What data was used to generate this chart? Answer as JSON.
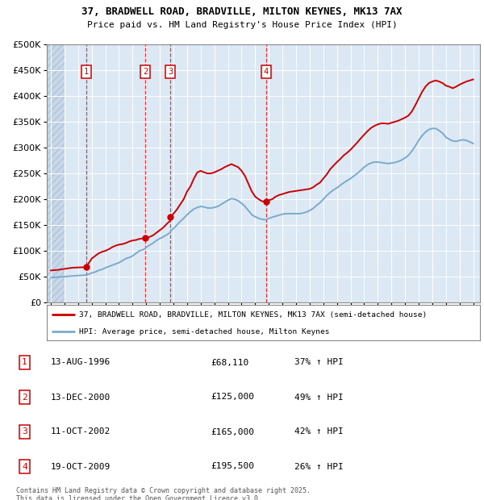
{
  "title_line1": "37, BRADWELL ROAD, BRADVILLE, MILTON KEYNES, MK13 7AX",
  "title_line2": "Price paid vs. HM Land Registry's House Price Index (HPI)",
  "background_color": "#ffffff",
  "plot_bg_color": "#dce9f5",
  "hatch_color": "#c8d8ea",
  "grid_color": "#ffffff",
  "sale_dates": [
    1996.617,
    2000.951,
    2002.784,
    2009.8
  ],
  "sale_prices": [
    68110,
    125000,
    165000,
    195500
  ],
  "sale_labels": [
    "1",
    "2",
    "3",
    "4"
  ],
  "sale_label_texts": [
    "13-AUG-1996",
    "13-DEC-2000",
    "11-OCT-2002",
    "19-OCT-2009"
  ],
  "sale_price_texts": [
    "£68,110",
    "£125,000",
    "£165,000",
    "£195,500"
  ],
  "sale_hpi_texts": [
    "37% ↑ HPI",
    "49% ↑ HPI",
    "42% ↑ HPI",
    "26% ↑ HPI"
  ],
  "red_line_color": "#cc0000",
  "blue_line_color": "#7aaacc",
  "dashed_line_color": "#ee3333",
  "marker_color": "#cc0000",
  "ylim_min": 0,
  "ylim_max": 500000,
  "xlim_min": 1993.7,
  "xlim_max": 2025.5,
  "legend_label_red": "37, BRADWELL ROAD, BRADVILLE, MILTON KEYNES, MK13 7AX (semi-detached house)",
  "legend_label_blue": "HPI: Average price, semi-detached house, Milton Keynes",
  "footer_line1": "Contains HM Land Registry data © Crown copyright and database right 2025.",
  "footer_line2": "This data is licensed under the Open Government Licence v3.0.",
  "red_x": [
    1994.0,
    1994.25,
    1994.5,
    1994.75,
    1995.0,
    1995.25,
    1995.5,
    1995.75,
    1996.0,
    1996.25,
    1996.617,
    1996.75,
    1997.0,
    1997.25,
    1997.5,
    1997.75,
    1998.0,
    1998.25,
    1998.5,
    1998.75,
    1999.0,
    1999.25,
    1999.5,
    1999.75,
    2000.0,
    2000.25,
    2000.5,
    2000.75,
    2000.951,
    2001.0,
    2001.25,
    2001.5,
    2001.75,
    2002.0,
    2002.25,
    2002.5,
    2002.75,
    2002.784,
    2003.0,
    2003.25,
    2003.5,
    2003.75,
    2004.0,
    2004.25,
    2004.5,
    2004.75,
    2005.0,
    2005.25,
    2005.5,
    2005.75,
    2006.0,
    2006.25,
    2006.5,
    2006.75,
    2007.0,
    2007.25,
    2007.5,
    2007.75,
    2008.0,
    2008.25,
    2008.5,
    2008.75,
    2009.0,
    2009.25,
    2009.5,
    2009.8,
    2009.9,
    2010.0,
    2010.25,
    2010.5,
    2010.75,
    2011.0,
    2011.25,
    2011.5,
    2011.75,
    2012.0,
    2012.25,
    2012.5,
    2012.75,
    2013.0,
    2013.25,
    2013.5,
    2013.75,
    2014.0,
    2014.25,
    2014.5,
    2014.75,
    2015.0,
    2015.25,
    2015.5,
    2015.75,
    2016.0,
    2016.25,
    2016.5,
    2016.75,
    2017.0,
    2017.25,
    2017.5,
    2017.75,
    2018.0,
    2018.25,
    2018.5,
    2018.75,
    2019.0,
    2019.25,
    2019.5,
    2019.75,
    2020.0,
    2020.25,
    2020.5,
    2020.75,
    2021.0,
    2021.25,
    2021.5,
    2021.75,
    2022.0,
    2022.25,
    2022.5,
    2022.75,
    2023.0,
    2023.25,
    2023.5,
    2023.75,
    2024.0,
    2024.25,
    2024.5,
    2024.75,
    2025.0
  ],
  "red_y": [
    62000,
    62500,
    63000,
    64000,
    65000,
    66000,
    67000,
    67500,
    67800,
    68000,
    68110,
    75000,
    85000,
    90000,
    95000,
    98000,
    100000,
    103000,
    107000,
    110000,
    112000,
    113000,
    115000,
    118000,
    120000,
    121000,
    123000,
    124000,
    125000,
    125500,
    127000,
    130000,
    135000,
    140000,
    145000,
    152000,
    158000,
    165000,
    172000,
    180000,
    190000,
    200000,
    215000,
    225000,
    240000,
    252000,
    255000,
    252000,
    250000,
    250000,
    252000,
    255000,
    258000,
    262000,
    265000,
    268000,
    265000,
    262000,
    255000,
    245000,
    230000,
    215000,
    205000,
    200000,
    196000,
    195500,
    196000,
    198000,
    200000,
    205000,
    208000,
    210000,
    212000,
    214000,
    215000,
    216000,
    217000,
    218000,
    219000,
    220000,
    223000,
    228000,
    232000,
    240000,
    248000,
    258000,
    265000,
    272000,
    278000,
    285000,
    290000,
    296000,
    303000,
    310000,
    318000,
    325000,
    332000,
    338000,
    342000,
    345000,
    347000,
    347000,
    346000,
    348000,
    350000,
    352000,
    355000,
    358000,
    362000,
    370000,
    382000,
    395000,
    408000,
    418000,
    425000,
    428000,
    430000,
    428000,
    425000,
    420000,
    418000,
    415000,
    418000,
    422000,
    425000,
    428000,
    430000,
    432000
  ],
  "blue_x": [
    1994.0,
    1994.25,
    1994.5,
    1994.75,
    1995.0,
    1995.25,
    1995.5,
    1995.75,
    1996.0,
    1996.25,
    1996.617,
    1996.75,
    1997.0,
    1997.25,
    1997.5,
    1997.75,
    1998.0,
    1998.25,
    1998.5,
    1998.75,
    1999.0,
    1999.25,
    1999.5,
    1999.75,
    2000.0,
    2000.25,
    2000.5,
    2000.75,
    2000.951,
    2001.0,
    2001.25,
    2001.5,
    2001.75,
    2002.0,
    2002.25,
    2002.5,
    2002.75,
    2002.784,
    2003.0,
    2003.25,
    2003.5,
    2003.75,
    2004.0,
    2004.25,
    2004.5,
    2004.75,
    2005.0,
    2005.25,
    2005.5,
    2005.75,
    2006.0,
    2006.25,
    2006.5,
    2006.75,
    2007.0,
    2007.25,
    2007.5,
    2007.75,
    2008.0,
    2008.25,
    2008.5,
    2008.75,
    2009.0,
    2009.25,
    2009.5,
    2009.8,
    2009.9,
    2010.0,
    2010.25,
    2010.5,
    2010.75,
    2011.0,
    2011.25,
    2011.5,
    2011.75,
    2012.0,
    2012.25,
    2012.5,
    2012.75,
    2013.0,
    2013.25,
    2013.5,
    2013.75,
    2014.0,
    2014.25,
    2014.5,
    2014.75,
    2015.0,
    2015.25,
    2015.5,
    2015.75,
    2016.0,
    2016.25,
    2016.5,
    2016.75,
    2017.0,
    2017.25,
    2017.5,
    2017.75,
    2018.0,
    2018.25,
    2018.5,
    2018.75,
    2019.0,
    2019.25,
    2019.5,
    2019.75,
    2020.0,
    2020.25,
    2020.5,
    2020.75,
    2021.0,
    2021.25,
    2021.5,
    2021.75,
    2022.0,
    2022.25,
    2022.5,
    2022.75,
    2023.0,
    2023.25,
    2023.5,
    2023.75,
    2024.0,
    2024.25,
    2024.5,
    2024.75,
    2025.0
  ],
  "blue_y": [
    48000,
    48500,
    49000,
    49500,
    50000,
    50500,
    51000,
    51500,
    52000,
    52500,
    53000,
    54500,
    57000,
    59000,
    62000,
    64000,
    67000,
    69500,
    72000,
    74500,
    77000,
    81000,
    85000,
    87000,
    90000,
    95000,
    100000,
    102000,
    105000,
    107000,
    111000,
    115000,
    120000,
    124000,
    127000,
    131000,
    135000,
    138000,
    143000,
    150000,
    157000,
    163000,
    170000,
    176000,
    181000,
    184000,
    186000,
    185000,
    183000,
    183000,
    184000,
    186000,
    190000,
    194000,
    198000,
    201000,
    200000,
    197000,
    192000,
    186000,
    178000,
    170000,
    166000,
    163000,
    161000,
    160000,
    161000,
    163000,
    165000,
    167000,
    169000,
    171000,
    172000,
    172000,
    172000,
    172000,
    172000,
    173000,
    175000,
    178000,
    182000,
    188000,
    193000,
    200000,
    207000,
    213000,
    218000,
    222000,
    227000,
    232000,
    236000,
    240000,
    245000,
    250000,
    256000,
    262000,
    267000,
    270000,
    272000,
    272000,
    271000,
    270000,
    269000,
    270000,
    271000,
    273000,
    276000,
    280000,
    285000,
    293000,
    303000,
    314000,
    323000,
    330000,
    335000,
    337000,
    337000,
    333000,
    328000,
    320000,
    316000,
    313000,
    312000,
    314000,
    315000,
    314000,
    311000,
    308000
  ]
}
